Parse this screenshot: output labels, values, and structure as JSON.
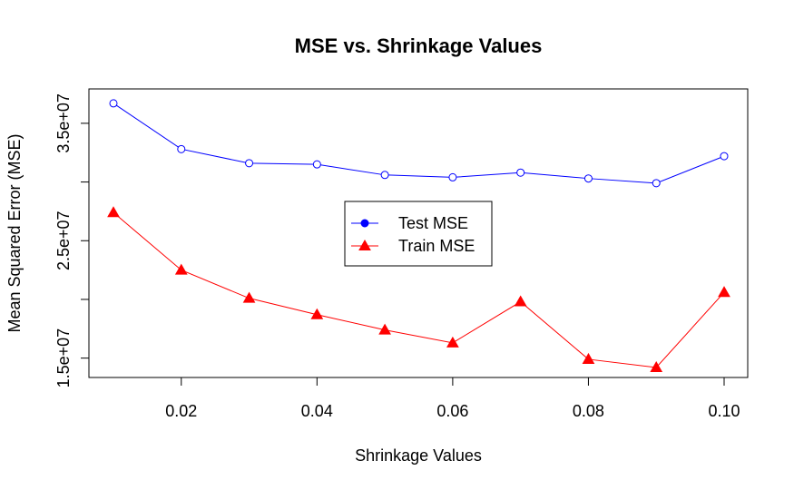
{
  "chart_data": {
    "type": "line",
    "title": "MSE vs. Shrinkage Values",
    "xlabel": "Shrinkage Values",
    "ylabel": "Mean Squared Error (MSE)",
    "x": [
      0.01,
      0.02,
      0.03,
      0.04,
      0.05,
      0.06,
      0.07,
      0.08,
      0.09,
      0.1
    ],
    "xlim": [
      0.01,
      0.1
    ],
    "ylim": [
      14200000,
      37000000
    ],
    "x_ticks": [
      0.02,
      0.04,
      0.06,
      0.08,
      0.1
    ],
    "x_tick_labels": [
      "0.02",
      "0.04",
      "0.06",
      "0.08",
      "0.10"
    ],
    "y_ticks": [
      15000000,
      20000000,
      25000000,
      30000000,
      35000000
    ],
    "y_tick_labels": [
      "1.5e+07",
      "",
      "2.5e+07",
      "",
      "3.5e+07"
    ],
    "grid": false,
    "legend_position": "center",
    "series": [
      {
        "name": "Test MSE",
        "color": "#0000ff",
        "marker": "open-circle",
        "values": [
          36700000,
          32800000,
          31600000,
          31500000,
          30600000,
          30400000,
          30800000,
          30300000,
          29900000,
          32200000
        ]
      },
      {
        "name": "Train MSE",
        "color": "#ff0000",
        "marker": "filled-triangle",
        "values": [
          27400000,
          22500000,
          20100000,
          18700000,
          17400000,
          16300000,
          19800000,
          14900000,
          14200000,
          20600000
        ]
      }
    ]
  }
}
